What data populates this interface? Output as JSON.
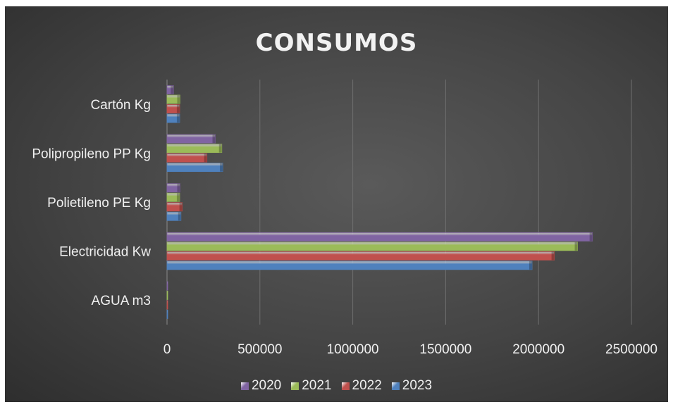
{
  "chart_data": {
    "type": "bar",
    "orientation": "horizontal",
    "title": "CONSUMOS",
    "categories": [
      "AGUA m3",
      "Electricidad Kw",
      "Polietileno PE Kg",
      "Polipropileno PP Kg",
      "Cartón Kg"
    ],
    "series": [
      {
        "name": "2020",
        "color": "#8064a2",
        "values": [
          300,
          2290000,
          70000,
          260000,
          35000
        ]
      },
      {
        "name": "2021",
        "color": "#9bbb59",
        "values": [
          300,
          2210000,
          68000,
          295000,
          70000
        ]
      },
      {
        "name": "2022",
        "color": "#c0504d",
        "values": [
          300,
          2085000,
          82000,
          215000,
          68000
        ]
      },
      {
        "name": "2023",
        "color": "#4f81bd",
        "values": [
          300,
          1965000,
          75000,
          300000,
          68000
        ]
      }
    ],
    "xlim": [
      0,
      2500000
    ],
    "xticks": [
      0,
      500000,
      1000000,
      1500000,
      2000000,
      2500000
    ],
    "xtick_labels": [
      "0",
      "500000",
      "1000000",
      "1500000",
      "2000000",
      "2500000"
    ],
    "grid": true,
    "legend_position": "bottom"
  }
}
